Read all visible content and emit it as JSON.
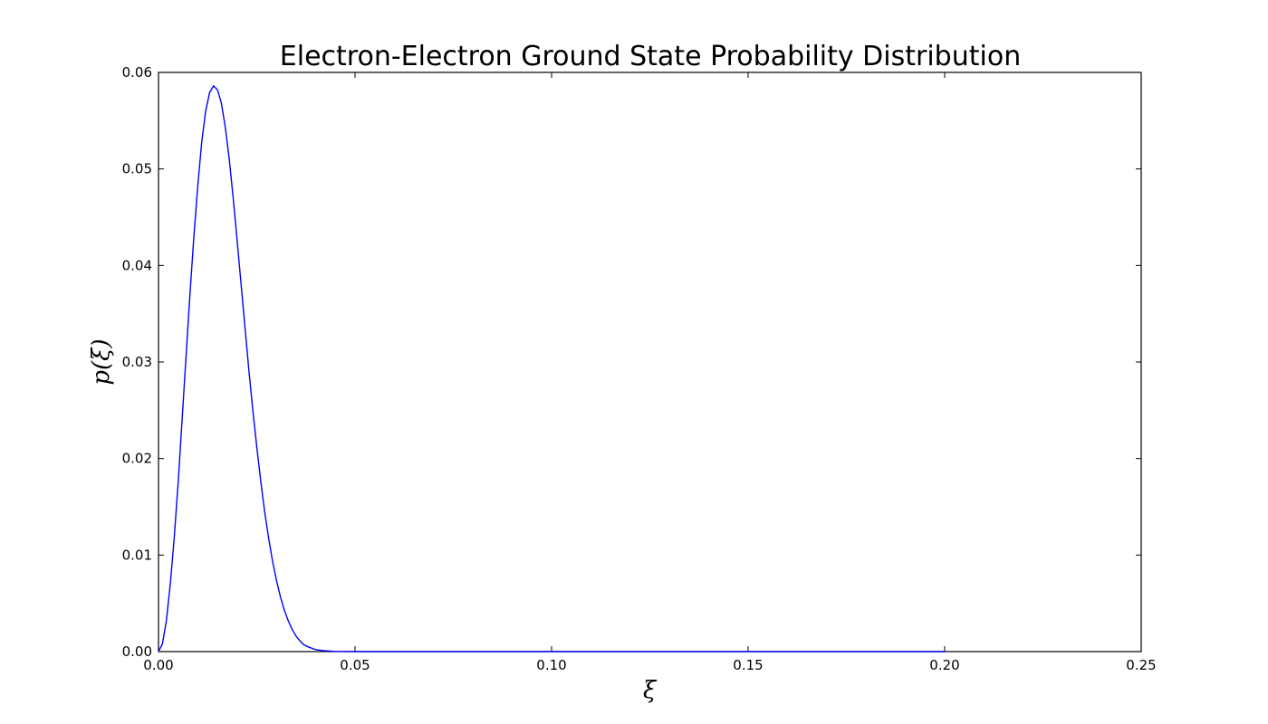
{
  "chart_data": {
    "type": "line",
    "title": "Electron-Electron Ground State Probability Distribution",
    "xlabel": "ξ",
    "ylabel": "p(ξ)",
    "xlim": [
      0.0,
      0.25
    ],
    "ylim": [
      0.0,
      0.06
    ],
    "x_ticks": [
      "0.00",
      "0.05",
      "0.10",
      "0.15",
      "0.20",
      "0.25"
    ],
    "y_ticks": [
      "0.00",
      "0.01",
      "0.02",
      "0.03",
      "0.04",
      "0.05",
      "0.06"
    ],
    "grid": false,
    "line_color": "#0000ff",
    "series": [
      {
        "x": [
          0.0,
          0.001,
          0.002,
          0.003,
          0.004,
          0.005,
          0.006,
          0.007,
          0.008,
          0.009,
          0.01,
          0.011,
          0.012,
          0.013,
          0.014,
          0.015,
          0.016,
          0.017,
          0.018,
          0.019,
          0.02,
          0.021,
          0.022,
          0.023,
          0.024,
          0.025,
          0.026,
          0.027,
          0.028,
          0.029,
          0.03,
          0.031,
          0.032,
          0.033,
          0.034,
          0.035,
          0.036,
          0.037,
          0.038,
          0.04,
          0.042,
          0.045,
          0.05,
          0.06,
          0.08,
          0.1,
          0.15,
          0.2
        ],
        "y": [
          0.0,
          0.0008,
          0.0032,
          0.007,
          0.0118,
          0.0175,
          0.024,
          0.0305,
          0.037,
          0.043,
          0.0483,
          0.0528,
          0.056,
          0.0579,
          0.0586,
          0.0582,
          0.0568,
          0.0543,
          0.051,
          0.047,
          0.0426,
          0.0381,
          0.0336,
          0.0291,
          0.025,
          0.0212,
          0.0177,
          0.0145,
          0.0118,
          0.0094,
          0.0074,
          0.0057,
          0.0043,
          0.0032,
          0.0023,
          0.0016,
          0.0011,
          0.0007,
          0.0005,
          0.0002,
          0.0001,
          2e-05,
          0.0,
          0.0,
          0.0,
          0.0,
          0.0,
          0.0
        ]
      }
    ]
  }
}
